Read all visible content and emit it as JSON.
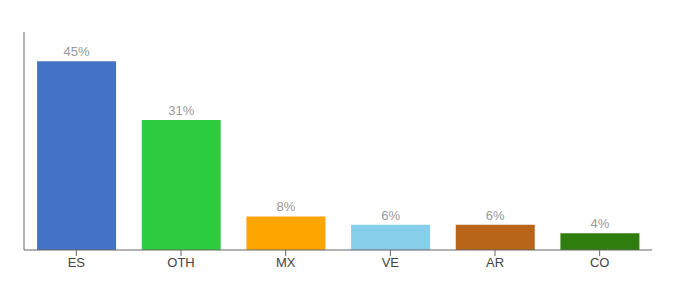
{
  "chart_data": {
    "type": "bar",
    "categories": [
      "ES",
      "OTH",
      "MX",
      "VE",
      "AR",
      "CO"
    ],
    "values": [
      45,
      31,
      8,
      6,
      6,
      4
    ],
    "value_labels": [
      "45%",
      "31%",
      "8%",
      "6%",
      "6%",
      "4%"
    ],
    "data_labels": true,
    "colors": [
      "#4472C4",
      "#2ECC40",
      "#FFA500",
      "#87CEEB",
      "#B8651A",
      "#2E7D0E"
    ],
    "ylim": [
      0,
      52
    ],
    "grid": false,
    "tick_labels": "x"
  }
}
